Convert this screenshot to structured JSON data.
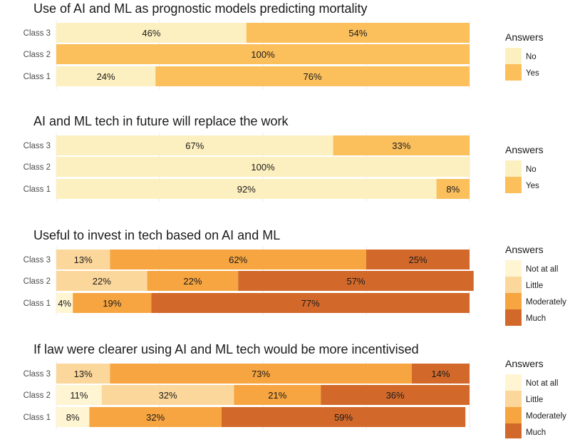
{
  "chart_data": [
    {
      "type": "bar",
      "orientation": "horizontal",
      "stacked": true,
      "title": "Use of AI and ML as prognostic models predicting mortality",
      "categories": [
        "Class 3",
        "Class 2",
        "Class 1"
      ],
      "legend_title": "Answers",
      "legend_position": "right",
      "series": [
        {
          "name": "No",
          "color": "#fdf0c0",
          "values": [
            46,
            0,
            24
          ]
        },
        {
          "name": "Yes",
          "color": "#fbbf5c",
          "values": [
            54,
            100,
            76
          ]
        }
      ],
      "labels": [
        [
          "46%",
          "54%"
        ],
        [
          "",
          "100%"
        ],
        [
          "24%",
          "76%"
        ]
      ]
    },
    {
      "type": "bar",
      "orientation": "horizontal",
      "stacked": true,
      "title": "AI and ML tech in future will replace the work",
      "categories": [
        "Class 3",
        "Class 2",
        "Class 1"
      ],
      "legend_title": "Answers",
      "legend_position": "right",
      "series": [
        {
          "name": "No",
          "color": "#fdf0c0",
          "values": [
            67,
            100,
            92
          ]
        },
        {
          "name": "Yes",
          "color": "#fbbf5c",
          "values": [
            33,
            0,
            8
          ]
        }
      ],
      "labels": [
        [
          "67%",
          "33%"
        ],
        [
          "100%",
          ""
        ],
        [
          "92%",
          "8%"
        ]
      ]
    },
    {
      "type": "bar",
      "orientation": "horizontal",
      "stacked": true,
      "title": "Useful to invest in tech based on AI and ML",
      "categories": [
        "Class 3",
        "Class 2",
        "Class 1"
      ],
      "legend_title": "Answers",
      "legend_position": "right",
      "series": [
        {
          "name": "Not at all",
          "color": "#fff5d2",
          "values": [
            0,
            0,
            4
          ]
        },
        {
          "name": "Little",
          "color": "#fcd79b",
          "values": [
            13,
            22,
            0
          ]
        },
        {
          "name": "Moderately",
          "color": "#f7a540",
          "values": [
            62,
            22,
            19
          ]
        },
        {
          "name": "Much",
          "color": "#d2692b",
          "values": [
            25,
            57,
            77
          ]
        }
      ],
      "labels": [
        [
          "",
          "13%",
          "62%",
          "25%"
        ],
        [
          "",
          "22%",
          "22%",
          "57%"
        ],
        [
          "4%",
          "",
          "19%",
          "77%"
        ]
      ]
    },
    {
      "type": "bar",
      "orientation": "horizontal",
      "stacked": true,
      "title": "If law were clearer using AI and ML tech would be more incentivised",
      "categories": [
        "Class 3",
        "Class 2",
        "Class 1"
      ],
      "legend_title": "Answers",
      "legend_position": "right",
      "series": [
        {
          "name": "Not at all",
          "color": "#fff5d2",
          "values": [
            0,
            11,
            8
          ]
        },
        {
          "name": "Little",
          "color": "#fcd79b",
          "values": [
            13,
            32,
            0
          ]
        },
        {
          "name": "Moderately",
          "color": "#f7a540",
          "values": [
            73,
            21,
            32
          ]
        },
        {
          "name": "Much",
          "color": "#d2692b",
          "values": [
            14,
            36,
            59
          ]
        }
      ],
      "labels": [
        [
          "",
          "13%",
          "73%",
          "14%"
        ],
        [
          "11%",
          "32%",
          "21%",
          "36%"
        ],
        [
          "8%",
          "",
          "32%",
          "59%"
        ]
      ]
    }
  ]
}
